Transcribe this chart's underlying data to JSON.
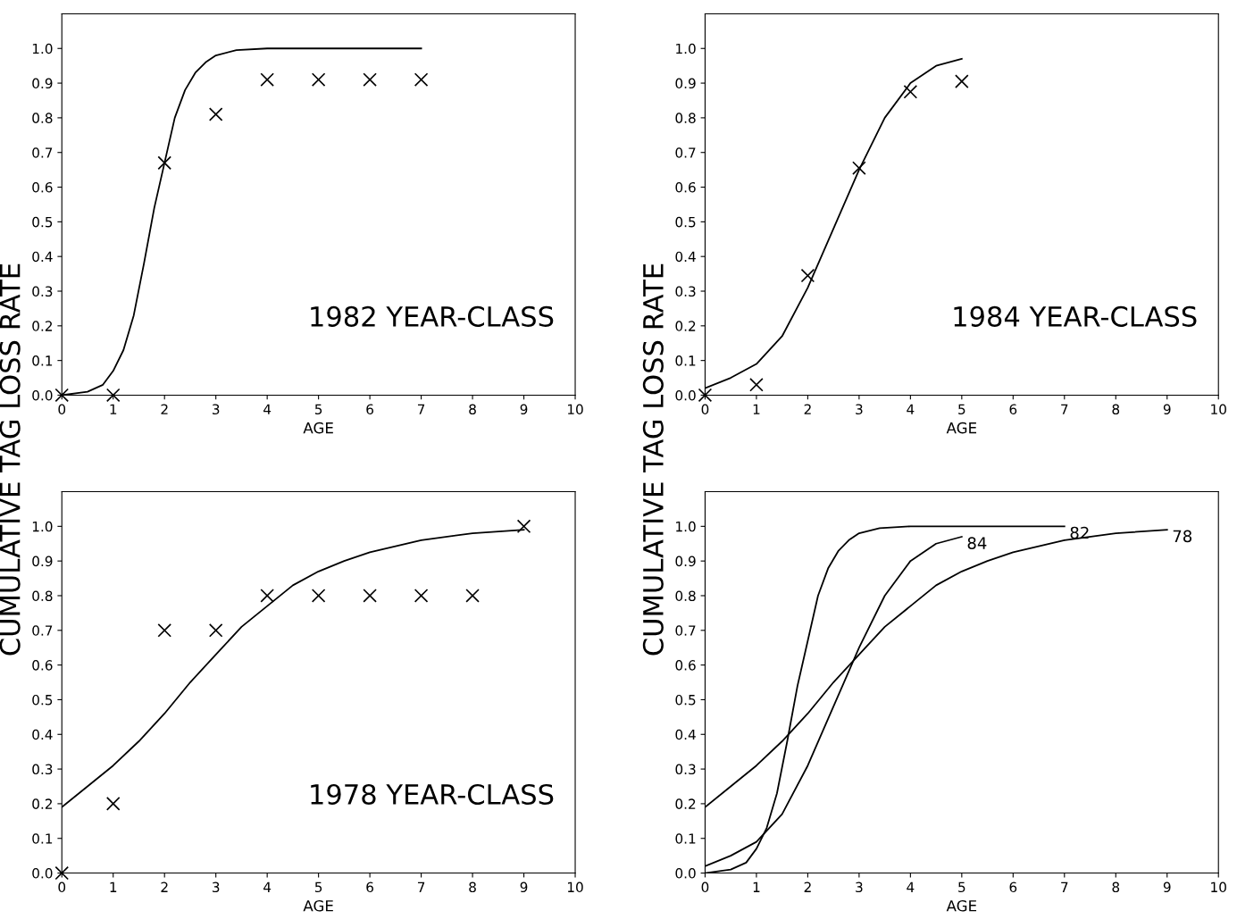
{
  "chart_data": [
    {
      "type": "line",
      "ylabel": "CUMULATIVE TAG LOSS RATE",
      "xlabel": "AGE",
      "annotations": [
        "1982 YEAR-CLASS"
      ],
      "xlim": [
        0,
        10
      ],
      "ylim": [
        0,
        1.1
      ],
      "xticks": [
        0,
        1,
        2,
        3,
        4,
        5,
        6,
        7,
        8,
        9,
        10
      ],
      "yticks": [
        {
          "value": 0,
          "label": "0.0"
        },
        {
          "value": 0.1,
          "label": "0.1"
        },
        {
          "value": 0.2,
          "label": "0.2"
        },
        {
          "value": 0.3,
          "label": "0.3"
        },
        {
          "value": 0.4,
          "label": "0.4"
        },
        {
          "value": 0.5,
          "label": "0.5"
        },
        {
          "value": 0.6,
          "label": "0.6"
        },
        {
          "value": 0.7,
          "label": "0.7"
        },
        {
          "value": 0.8,
          "label": "0.8"
        },
        {
          "value": 0.9,
          "label": "0.9"
        },
        {
          "value": 1,
          "label": "1.0"
        }
      ],
      "grid": false,
      "legend": false,
      "series": [
        {
          "type": "line",
          "color": "#000000",
          "x": [
            0,
            0.5,
            0.8,
            1,
            1.2,
            1.4,
            1.6,
            1.8,
            2,
            2.2,
            2.4,
            2.6,
            2.8,
            3,
            3.4,
            4,
            7
          ],
          "values": [
            0,
            0.01,
            0.03,
            0.07,
            0.13,
            0.23,
            0.38,
            0.54,
            0.67,
            0.8,
            0.88,
            0.93,
            0.96,
            0.98,
            0.995,
            1,
            1
          ]
        },
        {
          "type": "scatter",
          "color": "#000000",
          "marker": "cross",
          "x": [
            0,
            1,
            2,
            3,
            4,
            5,
            6,
            7
          ],
          "values": [
            0,
            0,
            0.67,
            0.81,
            0.91,
            0.91,
            0.91,
            0.91
          ]
        }
      ]
    },
    {
      "type": "line",
      "xlabel": "AGE",
      "ylabel": "CUMULATIVE TAG LOSS RATE",
      "annotations": [
        "1984 YEAR-CLASS"
      ],
      "xlim": [
        0,
        10
      ],
      "ylim": [
        0,
        1.1
      ],
      "xticks": [
        0,
        1,
        2,
        3,
        4,
        5,
        6,
        7,
        8,
        9,
        10
      ],
      "yticks": [
        {
          "value": 0,
          "label": "0.0"
        },
        {
          "value": 0.1,
          "label": "0.1"
        },
        {
          "value": 0.2,
          "label": "0.2"
        },
        {
          "value": 0.3,
          "label": "0.3"
        },
        {
          "value": 0.4,
          "label": "0.4"
        },
        {
          "value": 0.5,
          "label": "0.5"
        },
        {
          "value": 0.6,
          "label": "0.6"
        },
        {
          "value": 0.7,
          "label": "0.7"
        },
        {
          "value": 0.8,
          "label": "0.8"
        },
        {
          "value": 0.9,
          "label": "0.9"
        },
        {
          "value": 1,
          "label": "1.0"
        }
      ],
      "grid": false,
      "legend": false,
      "series": [
        {
          "type": "line",
          "color": "#000000",
          "x": [
            0,
            0.5,
            1,
            1.5,
            2,
            2.5,
            3,
            3.5,
            4,
            4.5,
            5
          ],
          "values": [
            0.02,
            0.05,
            0.09,
            0.17,
            0.31,
            0.48,
            0.65,
            0.8,
            0.9,
            0.95,
            0.97
          ]
        },
        {
          "type": "scatter",
          "color": "#000000",
          "marker": "cross",
          "x": [
            0,
            1,
            2,
            3,
            4,
            5
          ],
          "values": [
            0,
            0.03,
            0.345,
            0.655,
            0.875,
            0.905
          ]
        }
      ]
    },
    {
      "type": "line",
      "xlabel": "AGE",
      "annotations": [
        "1978 YEAR-CLASS"
      ],
      "xlim": [
        0,
        10
      ],
      "ylim": [
        0,
        1.1
      ],
      "xticks": [
        0,
        1,
        2,
        3,
        4,
        5,
        6,
        7,
        8,
        9,
        10
      ],
      "yticks": [
        {
          "value": 0,
          "label": "0.0"
        },
        {
          "value": 0.1,
          "label": "0.1"
        },
        {
          "value": 0.2,
          "label": "0.2"
        },
        {
          "value": 0.3,
          "label": "0.3"
        },
        {
          "value": 0.4,
          "label": "0.4"
        },
        {
          "value": 0.5,
          "label": "0.5"
        },
        {
          "value": 0.6,
          "label": "0.6"
        },
        {
          "value": 0.7,
          "label": "0.7"
        },
        {
          "value": 0.8,
          "label": "0.8"
        },
        {
          "value": 0.9,
          "label": "0.9"
        },
        {
          "value": 1,
          "label": "1.0"
        }
      ],
      "grid": false,
      "legend": false,
      "series": [
        {
          "type": "line",
          "color": "#000000",
          "x": [
            0,
            0.5,
            1,
            1.5,
            2,
            2.5,
            3,
            3.5,
            4,
            4.5,
            5,
            5.5,
            6,
            7,
            8,
            9
          ],
          "values": [
            0.19,
            0.25,
            0.31,
            0.38,
            0.46,
            0.55,
            0.63,
            0.71,
            0.77,
            0.83,
            0.87,
            0.9,
            0.925,
            0.96,
            0.98,
            0.99
          ]
        },
        {
          "type": "scatter",
          "color": "#000000",
          "marker": "cross",
          "x": [
            0,
            1,
            2,
            3,
            4,
            5,
            6,
            7,
            8,
            9
          ],
          "values": [
            0,
            0.2,
            0.7,
            0.7,
            0.8,
            0.8,
            0.8,
            0.8,
            0.8,
            1
          ]
        }
      ]
    },
    {
      "type": "line",
      "xlabel": "AGE",
      "xlim": [
        0,
        10
      ],
      "ylim": [
        0,
        1.1
      ],
      "xticks": [
        0,
        1,
        2,
        3,
        4,
        5,
        6,
        7,
        8,
        9,
        10
      ],
      "yticks": [
        {
          "value": 0,
          "label": "0.0"
        },
        {
          "value": 0.1,
          "label": "0.1"
        },
        {
          "value": 0.2,
          "label": "0.2"
        },
        {
          "value": 0.3,
          "label": "0.3"
        },
        {
          "value": 0.4,
          "label": "0.4"
        },
        {
          "value": 0.5,
          "label": "0.5"
        },
        {
          "value": 0.6,
          "label": "0.6"
        },
        {
          "value": 0.7,
          "label": "0.7"
        },
        {
          "value": 0.8,
          "label": "0.8"
        },
        {
          "value": 0.9,
          "label": "0.9"
        },
        {
          "value": 1,
          "label": "1.0"
        }
      ],
      "grid": false,
      "legend": false,
      "series": [
        {
          "type": "line",
          "name": "82",
          "color": "#000000",
          "x": [
            0,
            0.5,
            0.8,
            1,
            1.2,
            1.4,
            1.6,
            1.8,
            2,
            2.2,
            2.4,
            2.6,
            2.8,
            3,
            3.4,
            4,
            7
          ],
          "values": [
            0,
            0.01,
            0.03,
            0.07,
            0.13,
            0.23,
            0.38,
            0.54,
            0.67,
            0.8,
            0.88,
            0.93,
            0.96,
            0.98,
            0.995,
            1,
            1
          ]
        },
        {
          "type": "line",
          "name": "84",
          "color": "#000000",
          "x": [
            0,
            0.5,
            1,
            1.5,
            2,
            2.5,
            3,
            3.5,
            4,
            4.5,
            5
          ],
          "values": [
            0.02,
            0.05,
            0.09,
            0.17,
            0.31,
            0.48,
            0.65,
            0.8,
            0.9,
            0.95,
            0.97
          ]
        },
        {
          "type": "line",
          "name": "78",
          "color": "#000000",
          "x": [
            0,
            0.5,
            1,
            1.5,
            2,
            2.5,
            3,
            3.5,
            4,
            4.5,
            5,
            5.5,
            6,
            7,
            8,
            9
          ],
          "values": [
            0.19,
            0.25,
            0.31,
            0.38,
            0.46,
            0.55,
            0.63,
            0.71,
            0.77,
            0.83,
            0.87,
            0.9,
            0.925,
            0.96,
            0.98,
            0.99
          ]
        }
      ]
    }
  ]
}
